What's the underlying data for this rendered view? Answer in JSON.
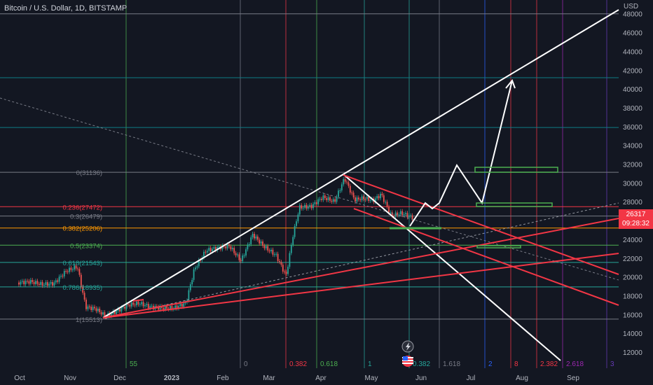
{
  "header": {
    "title": "Bitcoin / U.S. Dollar, 1D, BITSTAMP",
    "currency": "USD"
  },
  "price_badge": {
    "price": "26317",
    "countdown": "09:28:32"
  },
  "colors": {
    "bg": "#131722",
    "axis_text": "#b2b5be",
    "white": "#ffffff",
    "red": "#f23645",
    "green": "#4caf50",
    "teal": "#26a69a",
    "grid_cyan": "#0e7c86"
  },
  "chart_data": {
    "type": "candlestick",
    "title": "Bitcoin / U.S. Dollar, 1D, BITSTAMP",
    "ylabel": "USD",
    "y_ticks": [
      12000,
      14000,
      16000,
      18000,
      20000,
      22000,
      24000,
      26000,
      28000,
      30000,
      32000,
      34000,
      36000,
      38000,
      40000,
      42000,
      44000,
      46000,
      48000
    ],
    "x_ticks": [
      "Oct",
      "Nov",
      "Dec",
      "2023",
      "Feb",
      "Mar",
      "Apr",
      "May",
      "Jun",
      "Jul",
      "Aug",
      "Sep"
    ],
    "last_price": 26317,
    "fib_retracement": [
      {
        "label": "1(15513)",
        "value": 15513,
        "color": "#787b86"
      },
      {
        "label": "0.786(18935)",
        "value": 18935,
        "color": "#26a69a"
      },
      {
        "label": "0.618(21543)",
        "value": 21543,
        "color": "#26a69a"
      },
      {
        "label": "0.5(23374)",
        "value": 23374,
        "color": "#4caf50"
      },
      {
        "label": "0.382(25206)",
        "value": 25206,
        "color": "#ff9800"
      },
      {
        "label": "0.3(26479)",
        "value": 26479,
        "color": "#787b86"
      },
      {
        "label": "0.236(27472)",
        "value": 27472,
        "color": "#f23645"
      },
      {
        "label": "0(31136)",
        "value": 31136,
        "color": "#787b86"
      }
    ],
    "fib_time_labels": [
      {
        "label": "55",
        "color": "#4caf50"
      },
      {
        "label": "0",
        "color": "#787b86"
      },
      {
        "label": "0.382",
        "color": "#f23645"
      },
      {
        "label": "0.618",
        "color": "#4caf50"
      },
      {
        "label": "1",
        "color": "#26a69a"
      },
      {
        "label": "0.382",
        "color": "#26a69a"
      },
      {
        "label": "1.618",
        "color": "#787b86"
      },
      {
        "label": "2",
        "color": "#2962ff"
      },
      {
        "label": "8",
        "color": "#f23645"
      },
      {
        "label": "2.382",
        "color": "#f23645"
      },
      {
        "label": "2.618",
        "color": "#9c27b0"
      },
      {
        "label": "3",
        "color": "#673ab7"
      }
    ],
    "price_path": [
      [
        "2022-10-01",
        19400
      ],
      [
        "2022-10-08",
        19500
      ],
      [
        "2022-10-15",
        19200
      ],
      [
        "2022-10-22",
        19300
      ],
      [
        "2022-10-29",
        20600
      ],
      [
        "2022-11-05",
        21100
      ],
      [
        "2022-11-10",
        16800
      ],
      [
        "2022-11-16",
        16600
      ],
      [
        "2022-11-22",
        15800
      ],
      [
        "2022-11-28",
        16300
      ],
      [
        "2022-12-05",
        17000
      ],
      [
        "2022-12-12",
        17200
      ],
      [
        "2022-12-19",
        16800
      ],
      [
        "2022-12-26",
        16700
      ],
      [
        "2023-01-02",
        16700
      ],
      [
        "2023-01-09",
        17200
      ],
      [
        "2023-01-14",
        20800
      ],
      [
        "2023-01-21",
        22800
      ],
      [
        "2023-01-28",
        23100
      ],
      [
        "2023-02-04",
        23300
      ],
      [
        "2023-02-11",
        21700
      ],
      [
        "2023-02-18",
        24500
      ],
      [
        "2023-02-25",
        23200
      ],
      [
        "2023-03-04",
        22300
      ],
      [
        "2023-03-10",
        20100
      ],
      [
        "2023-03-14",
        24300
      ],
      [
        "2023-03-18",
        27400
      ],
      [
        "2023-03-25",
        27500
      ],
      [
        "2023-04-01",
        28500
      ],
      [
        "2023-04-08",
        28000
      ],
      [
        "2023-04-14",
        30500
      ],
      [
        "2023-04-20",
        28200
      ],
      [
        "2023-04-26",
        28400
      ],
      [
        "2023-05-01",
        28100
      ],
      [
        "2023-05-06",
        28800
      ],
      [
        "2023-05-12",
        26500
      ],
      [
        "2023-05-18",
        26800
      ],
      [
        "2023-05-25",
        26317
      ]
    ]
  }
}
